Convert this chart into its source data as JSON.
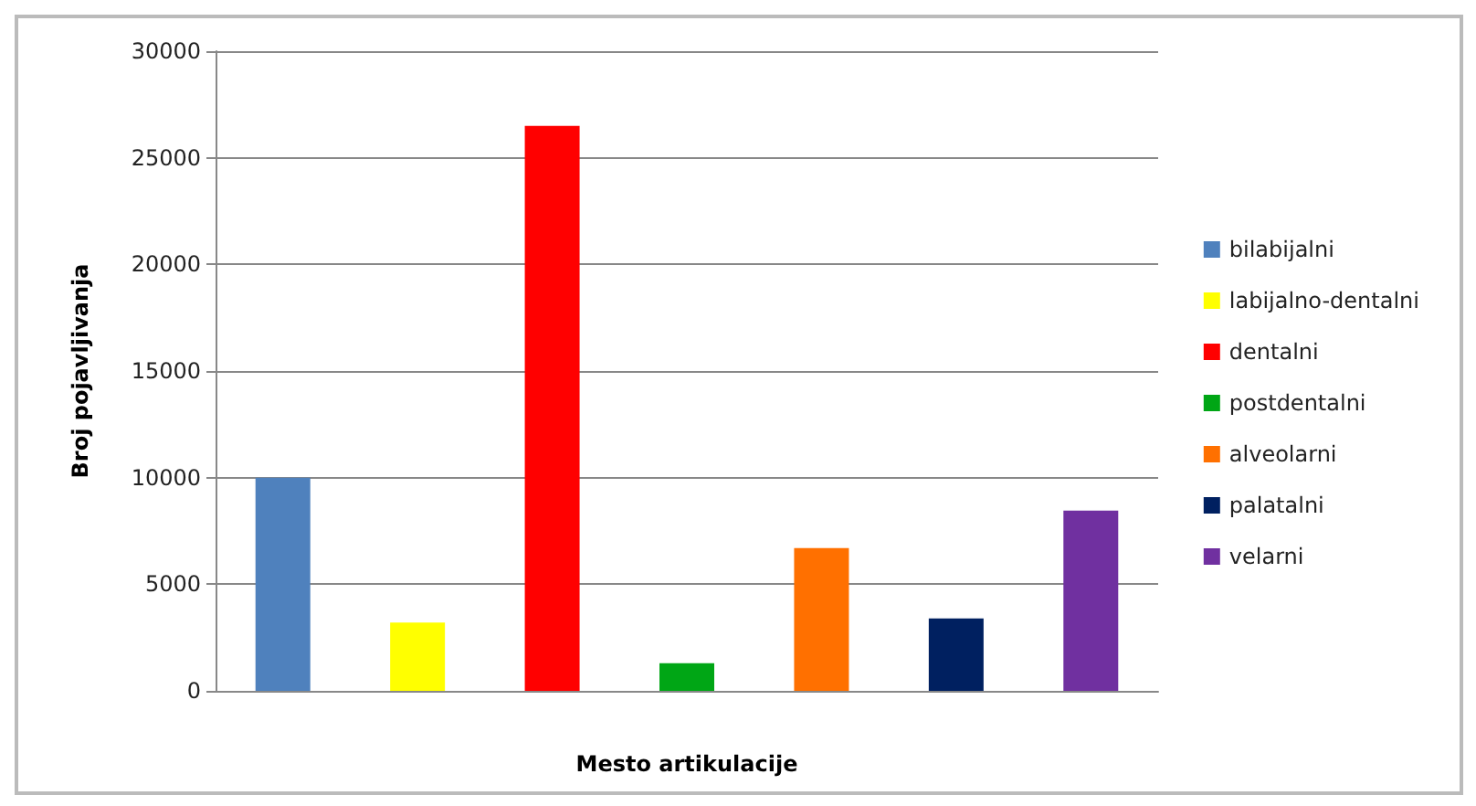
{
  "chart_data": {
    "type": "bar",
    "xlabel": "Mesto artikulacije",
    "ylabel": "Broj pojavljivanja",
    "categories": [
      null,
      null,
      null,
      null,
      null,
      null,
      null
    ],
    "series": [
      {
        "name": "bilabijalni",
        "color": "#4f81bd",
        "values": [
          10000,
          null,
          null,
          null,
          null,
          null,
          null
        ]
      },
      {
        "name": "labijalno-dentalni",
        "color": "#ffff00",
        "values": [
          null,
          3200,
          null,
          null,
          null,
          null,
          null
        ]
      },
      {
        "name": "dentalni",
        "color": "#ff0000",
        "values": [
          null,
          null,
          26500,
          null,
          null,
          null,
          null
        ]
      },
      {
        "name": "postdentalni",
        "color": "#00a615",
        "values": [
          null,
          null,
          null,
          1300,
          null,
          null,
          null
        ]
      },
      {
        "name": "alveolarni",
        "color": "#ff7000",
        "values": [
          null,
          null,
          null,
          null,
          6700,
          null,
          null
        ]
      },
      {
        "name": "palatalni",
        "color": "#002060",
        "values": [
          null,
          null,
          null,
          null,
          null,
          3400,
          null
        ]
      },
      {
        "name": "velarni",
        "color": "#7030a0",
        "values": [
          null,
          null,
          null,
          null,
          null,
          null,
          8450
        ]
      }
    ],
    "ylim": [
      0,
      30000
    ],
    "yticks": [
      0,
      5000,
      10000,
      15000,
      20000,
      25000,
      30000
    ],
    "grid": "y",
    "legend": "right"
  }
}
